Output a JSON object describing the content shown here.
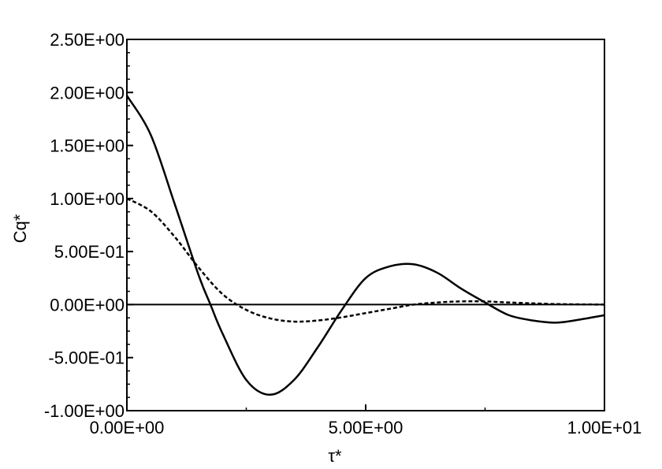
{
  "chart_data": {
    "type": "line",
    "title": "",
    "xlabel": "τ*",
    "ylabel": "Cq*",
    "xlim": [
      0,
      10
    ],
    "ylim": [
      -1.0,
      2.5
    ],
    "xticks": [
      0,
      5,
      10
    ],
    "xtick_labels": [
      "0.00E+00",
      "5.00E+00",
      "1.00E+01"
    ],
    "yticks": [
      -1.0,
      -0.5,
      0.0,
      0.5,
      1.0,
      1.5,
      2.0,
      2.5
    ],
    "ytick_labels": [
      "-1.00E+00",
      "-5.00E-01",
      "0.00E+00",
      "5.00E-01",
      "1.00E+00",
      "1.50E+00",
      "2.00E+00",
      "2.50E+00"
    ],
    "grid": false,
    "legend": "none",
    "line_color": "#000000",
    "series": [
      {
        "style": "solid",
        "x": [
          0,
          0.5,
          1.0,
          1.5,
          1.75,
          2.0,
          2.5,
          3.0,
          3.5,
          4.0,
          4.5,
          5.0,
          5.5,
          6.0,
          6.5,
          7.0,
          7.5,
          8.0,
          8.5,
          9.0,
          9.5,
          10.0
        ],
        "y": [
          1.97,
          1.6,
          0.95,
          0.28,
          0.0,
          -0.27,
          -0.71,
          -0.85,
          -0.71,
          -0.4,
          -0.05,
          0.25,
          0.36,
          0.38,
          0.3,
          0.15,
          0.02,
          -0.1,
          -0.15,
          -0.17,
          -0.14,
          -0.1
        ]
      },
      {
        "style": "dashed",
        "x": [
          0,
          0.5,
          1.0,
          1.5,
          2.0,
          2.5,
          3.0,
          3.5,
          4.0,
          4.5,
          5.0,
          5.5,
          6.0,
          6.5,
          7.0,
          7.5,
          8.0,
          9.0,
          10.0
        ],
        "y": [
          1.0,
          0.88,
          0.64,
          0.35,
          0.1,
          -0.05,
          -0.13,
          -0.16,
          -0.15,
          -0.12,
          -0.08,
          -0.04,
          0.0,
          0.02,
          0.03,
          0.03,
          0.02,
          0.005,
          0.0
        ]
      },
      {
        "style": "zero-line",
        "x": [
          0,
          10
        ],
        "y": [
          0,
          0
        ]
      }
    ]
  }
}
